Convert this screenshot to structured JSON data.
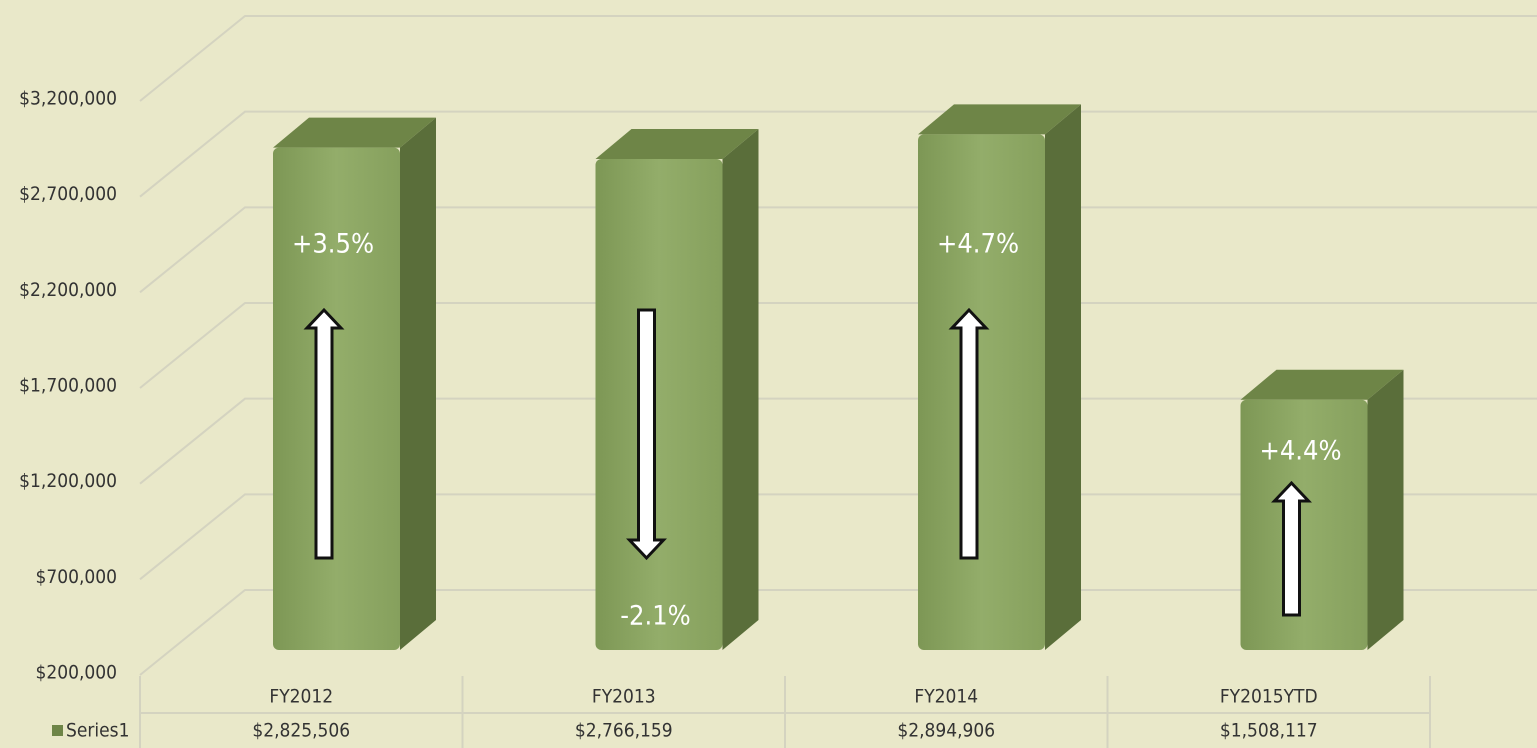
{
  "chart_data": {
    "type": "bar3d",
    "categories": [
      "FY2012",
      "FY2013",
      "FY2014",
      "FY2015YTD"
    ],
    "series": [
      {
        "name": "Series1",
        "color": "#8da764",
        "values": [
          2825506,
          2766159,
          2894906,
          1508117
        ],
        "value_labels": [
          "$2,825,506",
          "$2,766,159",
          "$2,894,906",
          "$1,508,117"
        ]
      }
    ],
    "annotations": [
      "+3.5%",
      "-2.1%",
      "+4.7%",
      "+4.4%"
    ],
    "ylim": [
      200000,
      3200000
    ],
    "yticks": [
      {
        "value": 200000,
        "label": "$200,000"
      },
      {
        "value": 700000,
        "label": "$700,000"
      },
      {
        "value": 1200000,
        "label": "$1,200,000"
      },
      {
        "value": 1700000,
        "label": "$1,700,000"
      },
      {
        "value": 2200000,
        "label": "$2,200,000"
      },
      {
        "value": 2700000,
        "label": "$2,700,000"
      },
      {
        "value": 3200000,
        "label": "$3,200,000"
      }
    ],
    "grid": true
  }
}
